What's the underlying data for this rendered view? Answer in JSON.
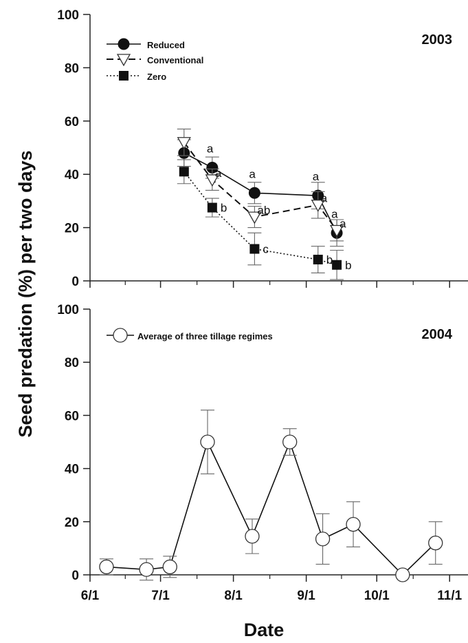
{
  "chart_data": {
    "shared": {
      "ylabel": "Seed predation (%) per two days",
      "xlabel": "Date",
      "yticks": [
        0,
        20,
        40,
        60,
        80,
        100
      ],
      "xticks": [
        {
          "label": "6/1",
          "day": 0
        },
        {
          "label": "7/1",
          "day": 30
        },
        {
          "label": "8/1",
          "day": 61
        },
        {
          "label": "9/1",
          "day": 92
        },
        {
          "label": "10/1",
          "day": 122
        },
        {
          "label": "11/1",
          "day": 153
        }
      ],
      "ylim": [
        0,
        100
      ]
    },
    "panels": [
      {
        "type": "line",
        "panel_label": "2003",
        "series": [
          {
            "name": "Reduced",
            "marker": "circle",
            "line": "solid",
            "points": [
              {
                "date": "7/11",
                "y": 48,
                "err": 5
              },
              {
                "date": "7/23",
                "y": 42.5,
                "err": 4
              },
              {
                "date": "8/10",
                "y": 33,
                "err": 4
              },
              {
                "date": "9/6",
                "y": 32,
                "err": 5
              },
              {
                "date": "9/14",
                "y": 18,
                "err": 5
              }
            ],
            "letters": [
              "",
              "a",
              "a",
              "a",
              "a"
            ]
          },
          {
            "name": "Conventional",
            "marker": "triangle-down",
            "line": "dashed",
            "points": [
              {
                "date": "7/11",
                "y": 52,
                "err": 5
              },
              {
                "date": "7/23",
                "y": 38,
                "err": 4
              },
              {
                "date": "8/10",
                "y": 24,
                "err": 4
              },
              {
                "date": "9/6",
                "y": 28.5,
                "err": 5
              },
              {
                "date": "9/14",
                "y": 19,
                "err": 4
              }
            ],
            "letters": [
              "",
              "a",
              "ab",
              "a",
              "a"
            ]
          },
          {
            "name": "Zero",
            "marker": "square",
            "line": "dotted",
            "points": [
              {
                "date": "7/11",
                "y": 41,
                "err": 4.5
              },
              {
                "date": "7/23",
                "y": 27.5,
                "err": 3.5
              },
              {
                "date": "8/10",
                "y": 12,
                "err": 6
              },
              {
                "date": "9/6",
                "y": 8,
                "err": 5
              },
              {
                "date": "9/14",
                "y": 6,
                "err": 5.5
              }
            ],
            "letters": [
              "",
              "b",
              "c",
              "b",
              "b"
            ]
          }
        ],
        "legend_position": "top-left"
      },
      {
        "type": "line",
        "panel_label": "2004",
        "series": [
          {
            "name": "Average of three tillage regimes",
            "marker": "circle-open",
            "line": "solid",
            "points": [
              {
                "date": "6/8",
                "y": 3,
                "err": 3
              },
              {
                "date": "6/25",
                "y": 2,
                "err": 4
              },
              {
                "date": "7/5",
                "y": 3,
                "err": 4
              },
              {
                "date": "7/21",
                "y": 50,
                "err": 12
              },
              {
                "date": "8/9",
                "y": 14.5,
                "err": 6.5
              },
              {
                "date": "8/25",
                "y": 50,
                "err": 5
              },
              {
                "date": "9/8",
                "y": 13.5,
                "err": 9.5
              },
              {
                "date": "9/21",
                "y": 19,
                "err": 8.5
              },
              {
                "date": "10/12",
                "y": 0,
                "err": 0
              },
              {
                "date": "10/26",
                "y": 12,
                "err": 8
              }
            ]
          }
        ],
        "legend_position": "top-left"
      }
    ]
  }
}
